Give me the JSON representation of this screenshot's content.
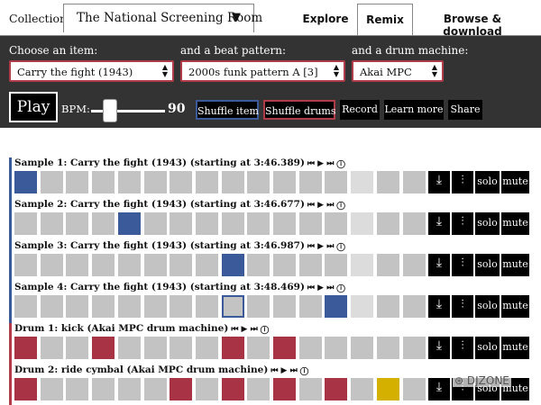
{
  "header": {
    "collection_label": "Collection:",
    "collection_value": "The National Screening Room",
    "collection_caret": "▼",
    "tabs": [
      {
        "label": "Explore",
        "active": false
      },
      {
        "label": "Remix",
        "active": true
      },
      {
        "label": "Browse & download",
        "active": false
      }
    ]
  },
  "controls": {
    "item_label": "Choose an item:",
    "item_value": "Carry the fight (1943)",
    "pattern_label": "and a beat pattern:",
    "pattern_value": "2000s funk pattern A [3]",
    "machine_label": "and a drum machine:",
    "machine_value": "Akai MPC",
    "select_arrows": "▲▼",
    "play_label": "Play",
    "bpm_label": "BPM:",
    "bpm_value": "90",
    "bpm_slider_fraction": 0.25,
    "buttons": {
      "shuffle_item": "Shuffle item",
      "shuffle_drums": "Shuffle drums",
      "record": "Record",
      "learn_more": "Learn more",
      "share": "Share"
    }
  },
  "colors": {
    "panel_bg": "#333333",
    "sample_bar": "#3b5a99",
    "drum_bar": "#b23b4a",
    "cell_off": "#c3c3c3",
    "cell_light": "#dcdcdc",
    "sample_on": "#3b5a99",
    "drum_on": "#a83345",
    "accent_on": "#d4b000"
  },
  "track_controls": {
    "transport": "⏮ ▶ ⏭ ⓘ",
    "download_icon": "⤓",
    "mixer_icon": "⫶",
    "solo": "solo",
    "mute": "mute"
  },
  "tracks": [
    {
      "kind": "sample",
      "title": "Sample 1: Carry the fight (1943) (starting at 3:46.389)",
      "cells": [
        1,
        0,
        0,
        0,
        0,
        0,
        0,
        0,
        0,
        0,
        0,
        0,
        0,
        2,
        0,
        0
      ]
    },
    {
      "kind": "sample",
      "title": "Sample 2: Carry the fight (1943) (starting at 3:46.677)",
      "cells": [
        0,
        0,
        0,
        0,
        1,
        0,
        0,
        0,
        0,
        0,
        0,
        0,
        0,
        2,
        0,
        0
      ]
    },
    {
      "kind": "sample",
      "title": "Sample 3: Carry the fight (1943) (starting at 3:46.987)",
      "cells": [
        0,
        0,
        0,
        0,
        0,
        0,
        0,
        0,
        1,
        0,
        0,
        0,
        0,
        2,
        0,
        0
      ]
    },
    {
      "kind": "sample",
      "title": "Sample 4: Carry the fight (1943) (starting at 3:48.469)",
      "cells": [
        0,
        0,
        0,
        0,
        0,
        0,
        0,
        0,
        4,
        0,
        0,
        0,
        1,
        2,
        0,
        0
      ]
    },
    {
      "kind": "drum",
      "title": "Drum 1: kick (Akai MPC drum machine)",
      "cells": [
        1,
        0,
        0,
        1,
        0,
        0,
        0,
        0,
        1,
        0,
        1,
        0,
        0,
        0,
        0,
        0
      ]
    },
    {
      "kind": "drum",
      "title": "Drum 2: ride cymbal (Akai MPC drum machine)",
      "cells": [
        1,
        0,
        0,
        0,
        0,
        0,
        1,
        0,
        1,
        0,
        1,
        0,
        1,
        0,
        3,
        0
      ]
    }
  ],
  "watermark": "DJZONE"
}
